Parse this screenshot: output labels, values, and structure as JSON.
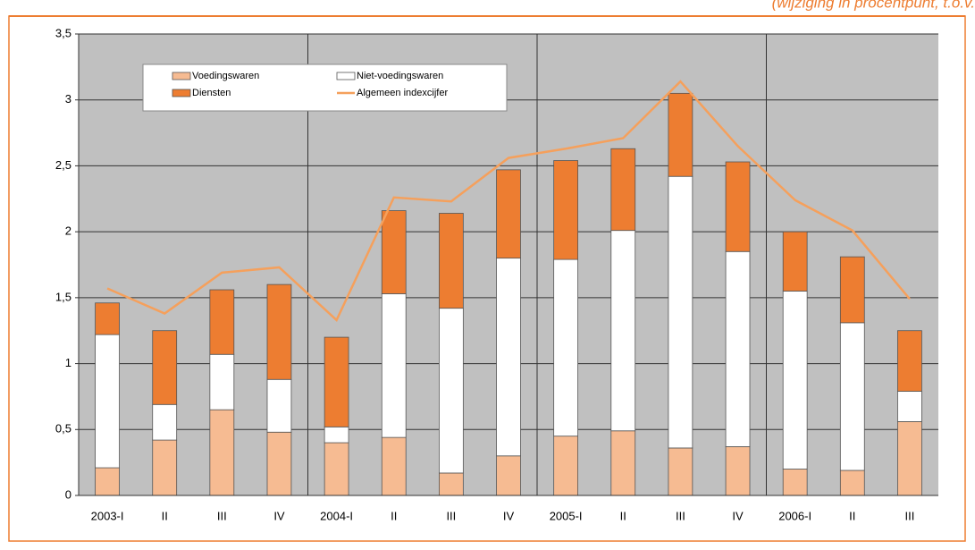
{
  "chart_data": {
    "type": "bar",
    "stacked": true,
    "subtitle": "(wijziging in procentpunt, t.o.v.",
    "categories": [
      "2003-I",
      "II",
      "III",
      "IV",
      "2004-I",
      "II",
      "III",
      "IV",
      "2005-I",
      "II",
      "III",
      "IV",
      "2006-I",
      "II",
      "III"
    ],
    "series": [
      {
        "name": "Voedingswaren",
        "color": "#f6bb92",
        "values": [
          0.21,
          0.42,
          0.65,
          0.48,
          0.4,
          0.44,
          0.17,
          0.3,
          0.45,
          0.49,
          0.36,
          0.37,
          0.2,
          0.19,
          0.56
        ]
      },
      {
        "name": "Niet-voedingswaren",
        "color": "#ffffff",
        "values": [
          1.01,
          0.27,
          0.42,
          0.4,
          0.12,
          1.09,
          1.25,
          1.5,
          1.34,
          1.52,
          2.06,
          1.48,
          1.35,
          1.12,
          0.23
        ]
      },
      {
        "name": "Diensten",
        "color": "#ed7d31",
        "values": [
          0.24,
          0.56,
          0.49,
          0.72,
          0.68,
          0.63,
          0.72,
          0.67,
          0.75,
          0.62,
          0.63,
          0.68,
          0.45,
          0.5,
          0.46
        ]
      },
      {
        "name": "Algemeen indexcijfer",
        "color": "#f5a05c",
        "type": "line",
        "values": [
          1.57,
          1.38,
          1.69,
          1.73,
          1.33,
          2.26,
          2.23,
          2.56,
          2.63,
          2.71,
          3.14,
          2.65,
          2.24,
          2.01,
          1.49
        ]
      }
    ],
    "ylim": [
      0,
      3.5
    ],
    "yticks": [
      0,
      {
        "value": 0.5,
        "label": "0,5"
      },
      1,
      {
        "value": 1.5,
        "label": "1,5"
      },
      2,
      {
        "value": 2.5,
        "label": "2,5"
      },
      3,
      {
        "value": 3.5,
        "label": "3,5"
      }
    ],
    "grid": true
  }
}
